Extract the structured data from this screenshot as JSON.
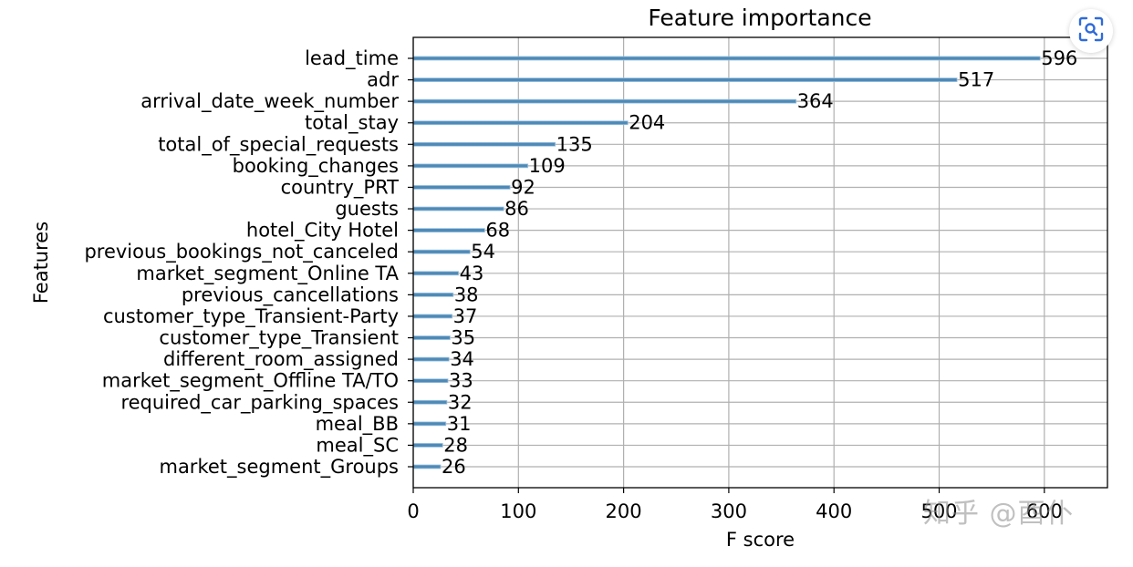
{
  "chart_data": {
    "type": "bar",
    "orientation": "horizontal",
    "title": "Feature importance",
    "xlabel": "F score",
    "ylabel": "Features",
    "xlim": [
      0,
      660
    ],
    "xticks": [
      0,
      100,
      200,
      300,
      400,
      500,
      600
    ],
    "grid": true,
    "categories": [
      "lead_time",
      "adr",
      "arrival_date_week_number",
      "total_stay",
      "total_of_special_requests",
      "booking_changes",
      "country_PRT",
      "guests",
      "hotel_City Hotel",
      "previous_bookings_not_canceled",
      "market_segment_Online TA",
      "previous_cancellations",
      "customer_type_Transient-Party",
      "customer_type_Transient",
      "different_room_assigned",
      "market_segment_Offline TA/TO",
      "required_car_parking_spaces",
      "meal_BB",
      "meal_SC",
      "market_segment_Groups"
    ],
    "values": [
      596,
      517,
      364,
      204,
      135,
      109,
      92,
      86,
      68,
      54,
      43,
      38,
      37,
      35,
      34,
      33,
      32,
      31,
      28,
      26
    ],
    "colors": {
      "bar": "#4e8ab7",
      "bar_edge": "#9fc3df",
      "grid": "#b0b0b0",
      "axis": "#000000"
    }
  },
  "overlay": {
    "lens_icon": "image-search-icon",
    "watermark": "知乎 @酉仆"
  }
}
